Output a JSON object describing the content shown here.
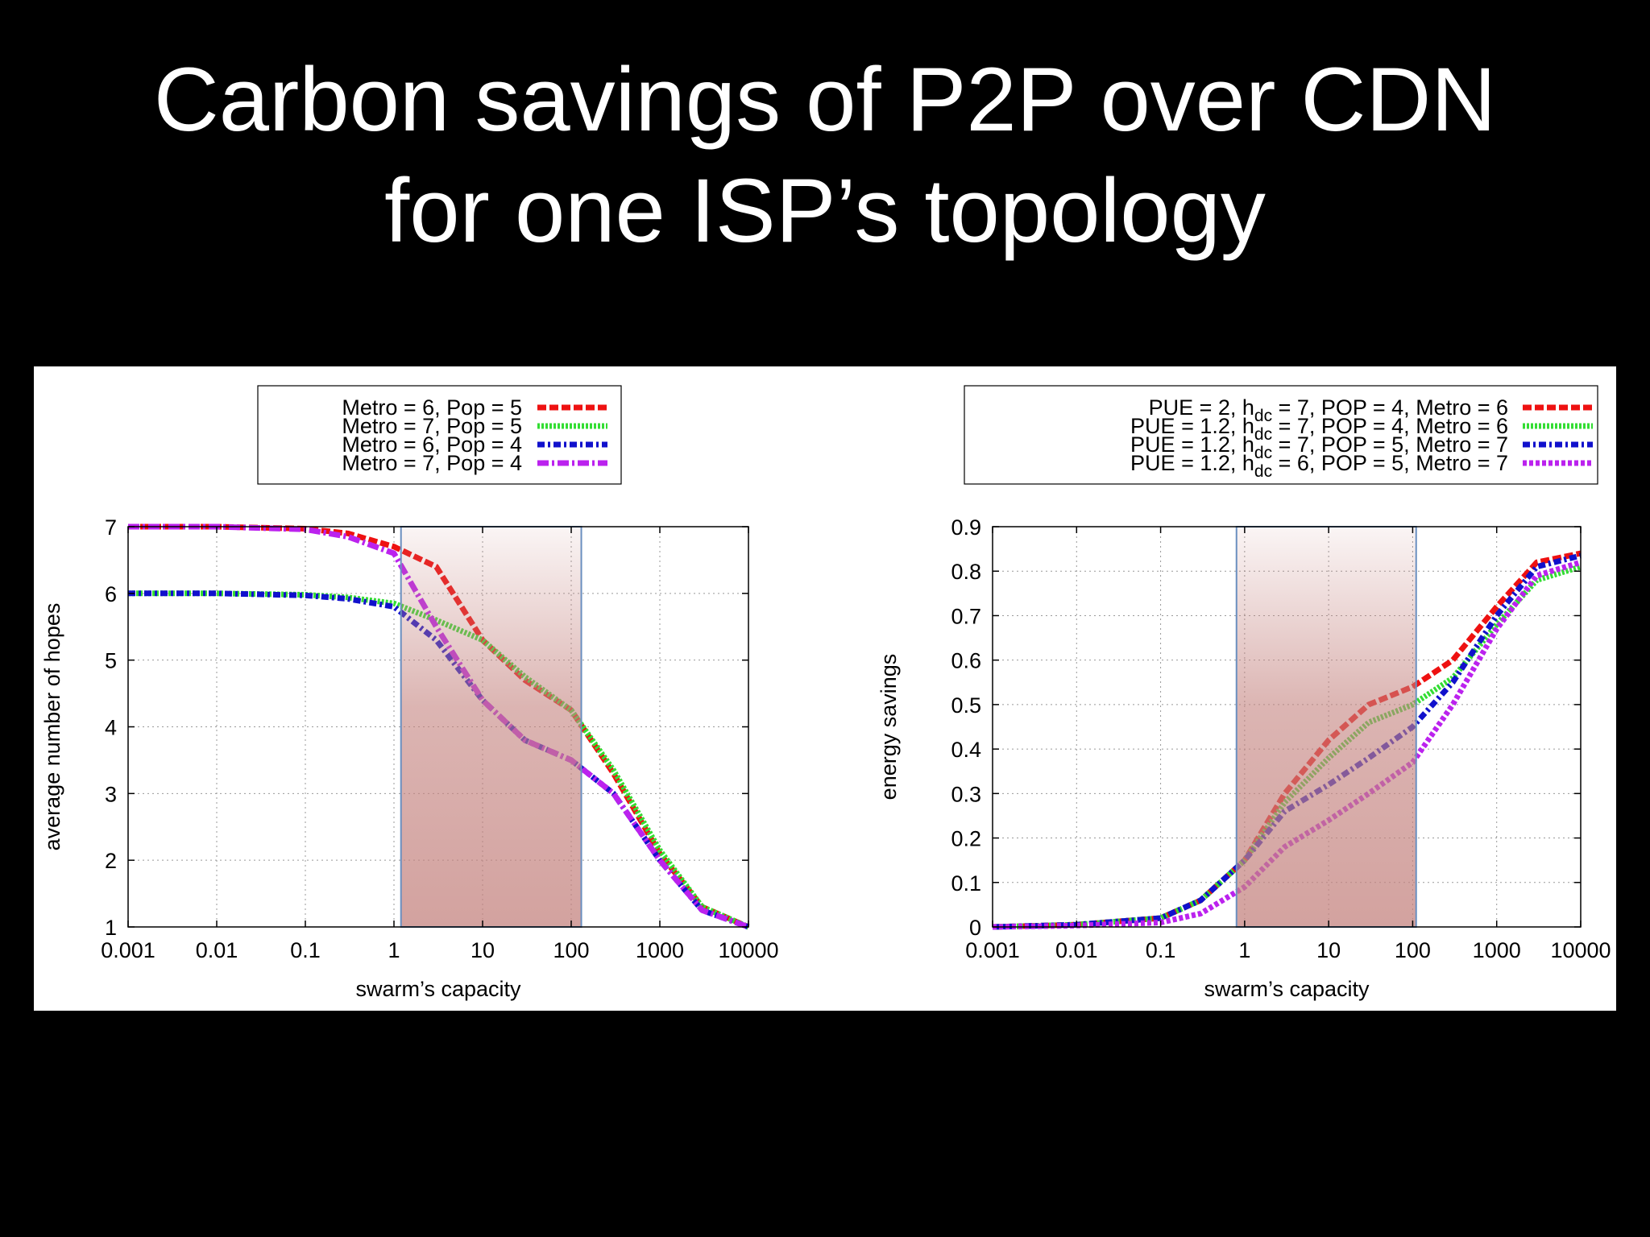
{
  "slide": {
    "title_line1": "Carbon savings of P2P over CDN",
    "title_line2": "for one ISP’s topology"
  },
  "highlight_color": "#c4837f",
  "chart_data": [
    {
      "type": "line",
      "xscale": "log",
      "xlabel": "swarm’s capacity",
      "ylabel": "average number of hopes",
      "xlim": [
        0.001,
        10000
      ],
      "ylim": [
        1,
        7
      ],
      "grid": true,
      "legend_position": "top",
      "x_ticks": [
        "0.001",
        "0.01",
        "0.1",
        "1",
        "10",
        "100",
        "1000",
        "10000"
      ],
      "y_ticks": [
        "1",
        "2",
        "3",
        "4",
        "5",
        "6",
        "7"
      ],
      "highlight_range": [
        1.2,
        130
      ],
      "x": [
        0.001,
        0.01,
        0.1,
        0.3,
        1,
        3,
        10,
        30,
        100,
        300,
        1000,
        3000,
        10000
      ],
      "series": [
        {
          "name": "Metro = 6, Pop = 5",
          "color": "#ee1111",
          "dash": "11,4",
          "values": [
            7.0,
            7.0,
            6.97,
            6.9,
            6.7,
            6.4,
            5.3,
            4.7,
            4.25,
            3.3,
            2.1,
            1.3,
            1.0
          ]
        },
        {
          "name": "Metro = 7, Pop = 5",
          "color": "#33dd33",
          "dash": "3,2",
          "values": [
            6.0,
            6.0,
            5.98,
            5.94,
            5.85,
            5.6,
            5.3,
            4.75,
            4.25,
            3.35,
            2.15,
            1.3,
            1.0
          ]
        },
        {
          "name": "Metro = 6, Pop = 4",
          "color": "#1111cc",
          "dash": "9,4,3,4",
          "values": [
            6.0,
            6.0,
            5.97,
            5.92,
            5.8,
            5.3,
            4.4,
            3.8,
            3.5,
            3.0,
            2.0,
            1.25,
            1.0
          ]
        },
        {
          "name": "Metro = 7, Pop = 4",
          "color": "#bb22ee",
          "dash": "14,4,3,4",
          "values": [
            7.0,
            7.0,
            6.96,
            6.85,
            6.6,
            5.5,
            4.4,
            3.8,
            3.5,
            3.0,
            2.0,
            1.25,
            1.0
          ]
        }
      ]
    },
    {
      "type": "line",
      "xscale": "log",
      "xlabel": "swarm’s capacity",
      "ylabel": "energy savings",
      "xlim": [
        0.001,
        10000
      ],
      "ylim": [
        0,
        0.9
      ],
      "grid": true,
      "legend_position": "top",
      "x_ticks": [
        "0.001",
        "0.01",
        "0.1",
        "1",
        "10",
        "100",
        "1000",
        "10000"
      ],
      "y_ticks": [
        "0",
        "0.1",
        "0.2",
        "0.3",
        "0.4",
        "0.5",
        "0.6",
        "0.7",
        "0.8",
        "0.9"
      ],
      "highlight_range": [
        0.8,
        110
      ],
      "x": [
        0.001,
        0.01,
        0.1,
        0.3,
        1,
        3,
        10,
        30,
        100,
        300,
        1000,
        3000,
        10000
      ],
      "series": [
        {
          "name": "PUE = 2, h_dc = 7, POP = 4, Metro = 6",
          "label_parts": [
            "PUE = 2, h",
            "dc",
            " = 7, POP = 4, Metro = 6"
          ],
          "color": "#ee1111",
          "dash": "11,4",
          "values": [
            0.0,
            0.005,
            0.02,
            0.06,
            0.15,
            0.3,
            0.42,
            0.5,
            0.54,
            0.6,
            0.72,
            0.82,
            0.84
          ]
        },
        {
          "name": "PUE = 1.2, h_dc = 7, POP = 4, Metro = 6",
          "label_parts": [
            "PUE = 1.2, h",
            "dc",
            " = 7, POP = 4, Metro = 6"
          ],
          "color": "#33dd33",
          "dash": "3,2",
          "values": [
            0.0,
            0.005,
            0.02,
            0.06,
            0.15,
            0.28,
            0.38,
            0.46,
            0.5,
            0.56,
            0.68,
            0.78,
            0.81
          ]
        },
        {
          "name": "PUE = 1.2, h_dc = 7, POP = 5, Metro = 7",
          "label_parts": [
            "PUE = 1.2, h",
            "dc",
            " = 7, POP = 5, Metro = 7"
          ],
          "color": "#1111cc",
          "dash": "9,4,3,4",
          "values": [
            0.0,
            0.005,
            0.02,
            0.06,
            0.15,
            0.26,
            0.32,
            0.38,
            0.45,
            0.55,
            0.7,
            0.81,
            0.835
          ]
        },
        {
          "name": "PUE = 1.2, h_dc = 6, POP = 5, Metro = 7",
          "label_parts": [
            "PUE = 1.2, h",
            "dc",
            " = 6, POP = 5, Metro = 7"
          ],
          "color": "#bb22ee",
          "dash": "5,3",
          "values": [
            0.0,
            0.003,
            0.01,
            0.03,
            0.09,
            0.18,
            0.24,
            0.3,
            0.37,
            0.5,
            0.67,
            0.79,
            0.82
          ]
        }
      ]
    }
  ]
}
